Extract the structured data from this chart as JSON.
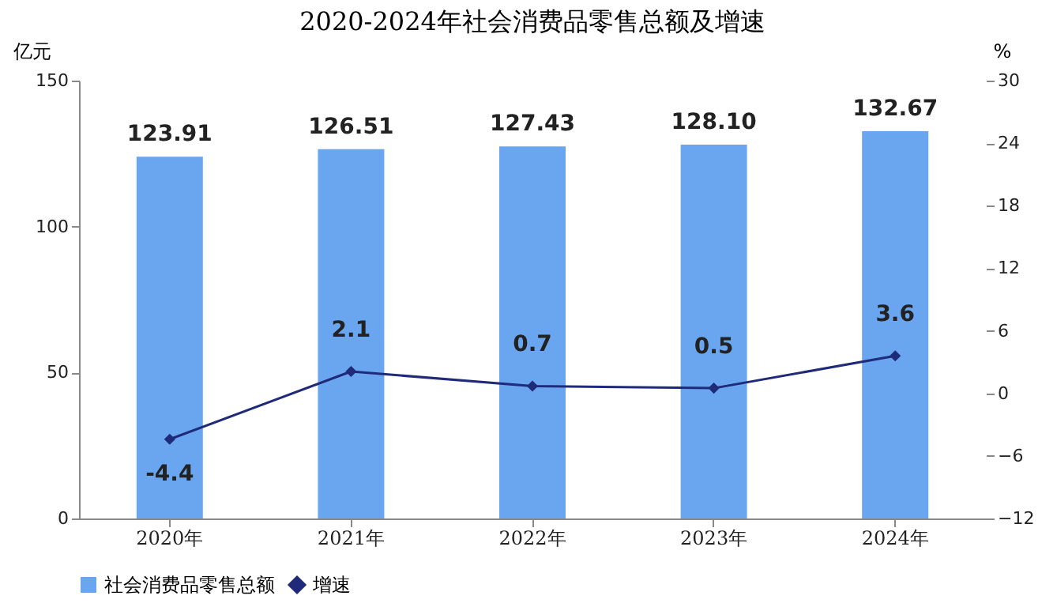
{
  "chart_data": {
    "type": "bar",
    "title": "2020-2024年社会消费品零售总额及增速",
    "categories": [
      "2020年",
      "2021年",
      "2022年",
      "2023年",
      "2024年"
    ],
    "series": [
      {
        "name": "社会消费品零售总额",
        "color": "#6aa6f0",
        "values": [
          123.91,
          126.51,
          127.43,
          128.1,
          132.67
        ],
        "value_labels": [
          "123.91",
          "126.51",
          "127.43",
          "128.10",
          "132.67"
        ]
      },
      {
        "name": "增速",
        "type": "line",
        "axis": "y2",
        "color": "#1f2a78",
        "marker": "diamond",
        "values": [
          -4.4,
          2.1,
          0.7,
          0.5,
          3.6
        ],
        "value_labels": [
          "-4.4",
          "2.1",
          "0.7",
          "0.5",
          "3.6"
        ]
      }
    ],
    "ylabel": "亿元",
    "y2label": "%",
    "ylim": [
      0,
      150
    ],
    "yticks": [
      0,
      50,
      100,
      150
    ],
    "y2lim": [
      -12,
      30
    ],
    "y2ticks": [
      -12,
      -6,
      0,
      6,
      12,
      18,
      24,
      30
    ],
    "grid": false,
    "legend": "bottom"
  }
}
